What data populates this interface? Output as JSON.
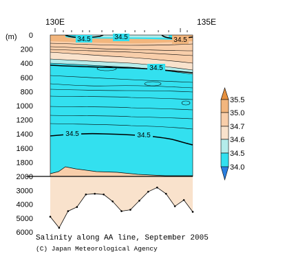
{
  "caption": "Salinity along AA line, September 2005",
  "credit": "(C) Japan Meteorological Agency",
  "chart_data": {
    "type": "contour-section",
    "title": "Salinity along AA line, September 2005",
    "x_ticks": [
      "130E",
      "135E"
    ],
    "y_unit": "(m)",
    "y_ticks_upper": [
      0,
      200,
      400,
      600,
      800,
      1000,
      1200,
      1400,
      1600,
      1800,
      2000
    ],
    "y_ticks_lower": [
      2000,
      3000,
      4000,
      5000,
      6000
    ],
    "ylim_upper": [
      0,
      2000
    ],
    "ylim_lower": [
      2000,
      6000
    ],
    "contour_labels": [
      "34.5",
      "34.5",
      "34.5",
      "34.5",
      "34.5",
      "34.5"
    ],
    "colorbar": {
      "levels": [
        34.0,
        34.5,
        34.6,
        34.7,
        35.0,
        35.5
      ],
      "labels": [
        "35.5",
        "35.0",
        "34.7",
        "34.6",
        "34.5",
        "34.0"
      ],
      "colors": {
        "below_34_0": "#2a7fe0",
        "c34_0_34_5": "#33e0ef",
        "c34_5_34_6": "#b4ecea",
        "c34_6_34_7": "#f9e2cc",
        "c34_7_35_0": "#f8ceaa",
        "c35_0_35_5": "#f2b67e",
        "above_35_5": "#e6903e"
      }
    },
    "bottom_depth_m": [
      4900,
      5700,
      4500,
      4200,
      3300,
      3250,
      3300,
      3800,
      4500,
      4400,
      3750,
      3100,
      2800,
      3250,
      4150,
      3700,
      4550
    ]
  }
}
